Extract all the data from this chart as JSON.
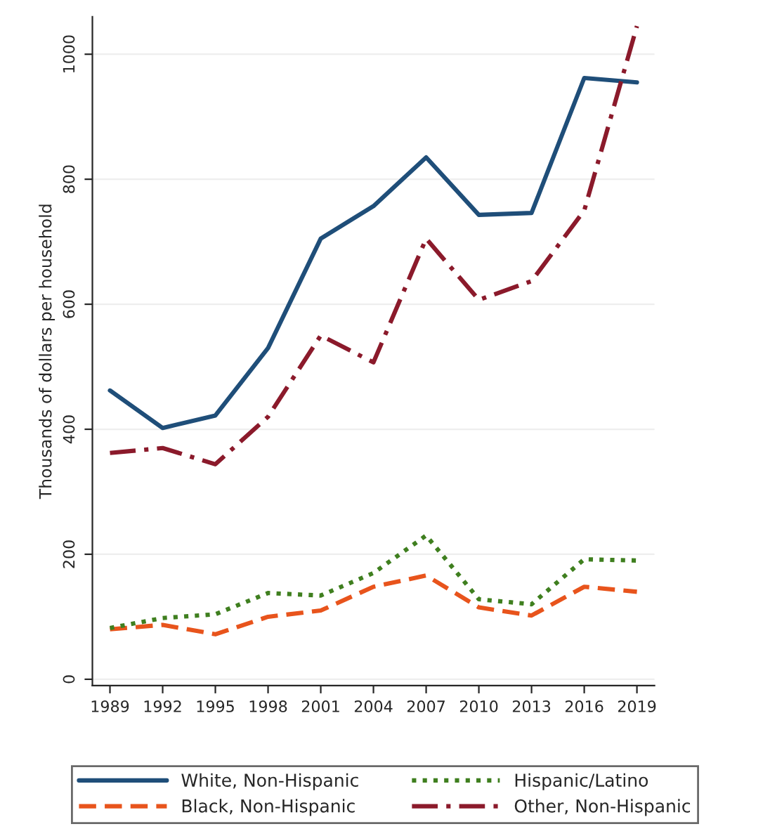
{
  "chart_data": {
    "type": "line",
    "ylabel": "Thousands of dollars per household",
    "x": [
      1989,
      1992,
      1995,
      1998,
      2001,
      2004,
      2007,
      2010,
      2013,
      2016,
      2019
    ],
    "series": [
      {
        "name": "White, Non-Hispanic",
        "color": "#1f4e79",
        "line_style": "solid",
        "values": [
          462,
          402,
          422,
          530,
          705,
          757,
          835,
          743,
          746,
          962,
          955
        ]
      },
      {
        "name": "Black, Non-Hispanic",
        "color": "#e8541c",
        "line_style": "dashed",
        "values": [
          80,
          87,
          72,
          100,
          110,
          148,
          166,
          115,
          102,
          148,
          140
        ]
      },
      {
        "name": "Hispanic/Latino",
        "color": "#3f7f1f",
        "line_style": "dotted",
        "values": [
          82,
          98,
          104,
          138,
          134,
          170,
          230,
          128,
          120,
          192,
          190
        ]
      },
      {
        "name": "Other, Non-Hispanic",
        "color": "#8b1a2b",
        "line_style": "dashdot",
        "values": [
          362,
          370,
          344,
          420,
          550,
          507,
          705,
          607,
          637,
          750,
          1045
        ]
      }
    ],
    "xlim": [
      1988,
      2020
    ],
    "xticks": [
      1989,
      1992,
      1995,
      1998,
      2001,
      2004,
      2007,
      2010,
      2013,
      2016,
      2019
    ],
    "ylim": [
      -10,
      1060
    ],
    "yticks": [
      0,
      200,
      400,
      600,
      800,
      1000
    ],
    "grid": "y",
    "legend": "bottom",
    "marker": "none"
  }
}
